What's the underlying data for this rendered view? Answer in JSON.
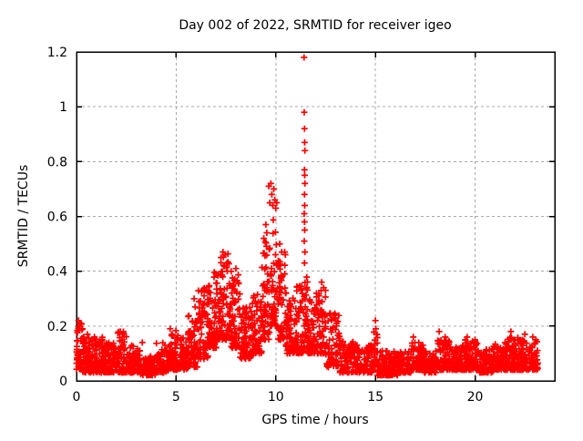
{
  "title": "Day 002 of 2022, SRMTID for receiver igeo",
  "colors": {
    "marker": "#ff0000",
    "grid": "#a8a8a8",
    "border": "#000000",
    "background": "#ffffff",
    "text": "#000000"
  },
  "chart_data": {
    "type": "scatter",
    "marker": "plus",
    "title": "Day 002 of 2022, SRMTID for receiver igeo",
    "xlabel": "GPS time / hours",
    "ylabel": "SRMTID / TECUs",
    "xlim": [
      0,
      24
    ],
    "ylim": [
      0,
      1.2
    ],
    "grid": true,
    "legend": "none",
    "series_color": "#ff0000",
    "xticks": {
      "values": [
        0,
        5,
        10,
        15,
        20
      ],
      "labels": [
        "0",
        "5",
        "10",
        "15",
        "20"
      ]
    },
    "yticks": {
      "values": [
        0,
        0.2,
        0.4,
        0.6,
        0.8,
        1.0,
        1.2
      ],
      "labels": [
        "0",
        "0.2",
        "0.4",
        "0.6",
        "0.8",
        "1",
        "1.2"
      ]
    },
    "seed": 20220102,
    "skew": 1.7,
    "envelope_format": [
      "hour_start",
      "hour_end",
      "value_min",
      "value_max",
      "num_points"
    ],
    "envelope": [
      [
        0.0,
        0.3,
        0.04,
        0.21,
        45
      ],
      [
        0.3,
        0.8,
        0.03,
        0.16,
        70
      ],
      [
        0.8,
        1.3,
        0.03,
        0.17,
        70
      ],
      [
        1.3,
        2.0,
        0.03,
        0.14,
        95
      ],
      [
        2.0,
        2.5,
        0.03,
        0.18,
        65
      ],
      [
        2.5,
        3.2,
        0.03,
        0.13,
        85
      ],
      [
        3.2,
        4.0,
        0.02,
        0.09,
        85
      ],
      [
        4.0,
        4.6,
        0.03,
        0.14,
        75
      ],
      [
        4.6,
        5.1,
        0.04,
        0.19,
        65
      ],
      [
        5.1,
        5.6,
        0.04,
        0.16,
        60
      ],
      [
        5.6,
        6.1,
        0.05,
        0.24,
        65
      ],
      [
        6.1,
        6.6,
        0.08,
        0.34,
        65
      ],
      [
        6.6,
        7.1,
        0.12,
        0.4,
        70
      ],
      [
        7.1,
        7.7,
        0.15,
        0.47,
        85
      ],
      [
        7.7,
        8.2,
        0.12,
        0.4,
        70
      ],
      [
        8.2,
        8.8,
        0.08,
        0.28,
        75
      ],
      [
        8.8,
        9.3,
        0.1,
        0.32,
        65
      ],
      [
        9.3,
        9.7,
        0.15,
        0.55,
        55
      ],
      [
        9.7,
        10.1,
        0.2,
        0.6,
        55
      ],
      [
        10.1,
        10.5,
        0.15,
        0.47,
        55
      ],
      [
        10.5,
        11.0,
        0.1,
        0.33,
        65
      ],
      [
        11.0,
        11.4,
        0.1,
        0.35,
        55
      ],
      [
        11.4,
        11.6,
        0.12,
        0.4,
        30
      ],
      [
        11.6,
        11.9,
        0.1,
        0.3,
        40
      ],
      [
        11.9,
        12.5,
        0.1,
        0.33,
        75
      ],
      [
        12.5,
        13.2,
        0.05,
        0.25,
        75
      ],
      [
        13.2,
        14.0,
        0.03,
        0.15,
        85
      ],
      [
        14.0,
        14.9,
        0.03,
        0.13,
        95
      ],
      [
        14.9,
        15.1,
        0.05,
        0.2,
        25
      ],
      [
        15.1,
        16.1,
        0.02,
        0.11,
        105
      ],
      [
        16.1,
        16.8,
        0.03,
        0.11,
        80
      ],
      [
        16.8,
        17.4,
        0.04,
        0.14,
        70
      ],
      [
        17.4,
        18.1,
        0.03,
        0.11,
        80
      ],
      [
        18.1,
        18.8,
        0.04,
        0.15,
        85
      ],
      [
        18.8,
        19.5,
        0.04,
        0.13,
        85
      ],
      [
        19.5,
        20.2,
        0.04,
        0.15,
        85
      ],
      [
        20.2,
        20.9,
        0.03,
        0.12,
        80
      ],
      [
        20.9,
        21.6,
        0.04,
        0.14,
        85
      ],
      [
        21.6,
        22.2,
        0.04,
        0.16,
        75
      ],
      [
        22.2,
        23.15,
        0.04,
        0.15,
        110
      ]
    ],
    "outliers": [
      [
        0.1,
        0.22
      ],
      [
        0.18,
        0.21
      ],
      [
        0.3,
        0.19
      ],
      [
        0.55,
        0.17
      ],
      [
        0.9,
        0.16
      ],
      [
        2.2,
        0.18
      ],
      [
        2.3,
        0.17
      ],
      [
        3.3,
        0.14
      ],
      [
        4.7,
        0.19
      ],
      [
        4.8,
        0.17
      ],
      [
        5.9,
        0.3
      ],
      [
        5.95,
        0.27
      ],
      [
        6.3,
        0.33
      ],
      [
        6.4,
        0.31
      ],
      [
        7.25,
        0.45
      ],
      [
        7.35,
        0.47
      ],
      [
        7.45,
        0.46
      ],
      [
        7.55,
        0.43
      ],
      [
        8.0,
        0.41
      ],
      [
        9.4,
        0.52
      ],
      [
        9.5,
        0.57
      ],
      [
        9.55,
        0.54
      ],
      [
        9.65,
        0.71
      ],
      [
        9.7,
        0.65
      ],
      [
        9.75,
        0.72
      ],
      [
        9.8,
        0.68
      ],
      [
        9.85,
        0.64
      ],
      [
        9.9,
        0.7
      ],
      [
        9.95,
        0.66
      ],
      [
        10.0,
        0.63
      ],
      [
        10.05,
        0.65
      ],
      [
        10.2,
        0.5
      ],
      [
        10.3,
        0.47
      ],
      [
        11.42,
        1.18
      ],
      [
        11.43,
        0.98
      ],
      [
        11.44,
        0.92
      ],
      [
        11.45,
        0.87
      ],
      [
        11.46,
        0.84
      ],
      [
        11.44,
        0.77
      ],
      [
        11.45,
        0.75
      ],
      [
        11.46,
        0.72
      ],
      [
        11.44,
        0.68
      ],
      [
        11.45,
        0.64
      ],
      [
        11.43,
        0.61
      ],
      [
        11.44,
        0.58
      ],
      [
        11.45,
        0.55
      ],
      [
        11.43,
        0.51
      ],
      [
        11.46,
        0.47
      ],
      [
        11.44,
        0.43
      ],
      [
        12.3,
        0.36
      ],
      [
        12.4,
        0.34
      ],
      [
        12.5,
        0.33
      ],
      [
        15.0,
        0.22
      ],
      [
        15.02,
        0.19
      ],
      [
        15.05,
        0.17
      ],
      [
        16.9,
        0.16
      ],
      [
        18.2,
        0.18
      ],
      [
        18.5,
        0.16
      ],
      [
        19.6,
        0.16
      ],
      [
        20.0,
        0.15
      ],
      [
        21.8,
        0.18
      ],
      [
        22.5,
        0.17
      ],
      [
        22.9,
        0.16
      ],
      [
        23.05,
        0.15
      ]
    ]
  }
}
